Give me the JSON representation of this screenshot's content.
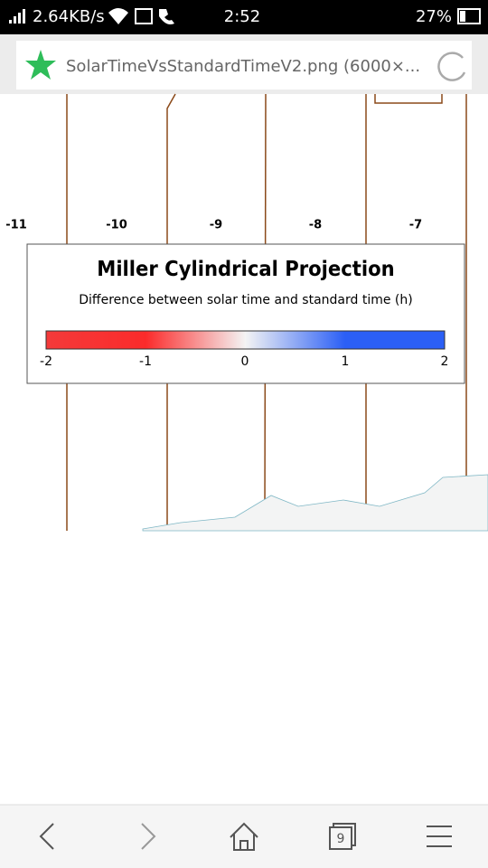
{
  "status_bar": {
    "speed": "2.64KB/s",
    "time": "2:52",
    "battery": "27%"
  },
  "address_bar": {
    "title": "SolarTimeVsStandardTimeV2.png (6000×..."
  },
  "image": {
    "zone_labels": [
      "-11",
      "-10",
      "-9",
      "-8",
      "-7"
    ],
    "legend": {
      "title": "Miller Cylindrical Projection",
      "subtitle": "Difference between solar time and standard time (h)",
      "ticks": [
        "-2",
        "-1",
        "0",
        "1",
        "2"
      ]
    }
  },
  "nav_bar": {
    "tab_count": "9"
  }
}
